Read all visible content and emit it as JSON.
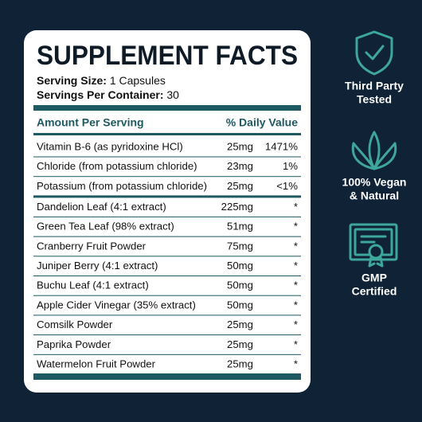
{
  "panel": {
    "title": "SUPPLEMENT FACTS",
    "serving_size": {
      "label": "Serving Size:",
      "value": "1 Capsules"
    },
    "servings_per_container": {
      "label": "Servings Per Container:",
      "value": "30"
    },
    "header": {
      "amount": "Amount Per Serving",
      "dv": "% Daily Value"
    },
    "groups": [
      {
        "rows": [
          [
            "Vitamin B-6 (as pyridoxine HCl)",
            "25mg",
            "1471%"
          ],
          [
            "Chloride (from potassium chloride)",
            "23mg",
            "1%"
          ],
          [
            "Potassium (from potassium chloride)",
            "25mg",
            "<1%"
          ]
        ]
      },
      {
        "rows": [
          [
            "Dandelion Leaf (4:1 extract)",
            "225mg",
            "*"
          ],
          [
            "Green Tea Leaf (98% extract)",
            "51mg",
            "*"
          ],
          [
            "Cranberry Fruit Powder",
            "75mg",
            "*"
          ],
          [
            "Juniper Berry (4:1 extract)",
            "50mg",
            "*"
          ],
          [
            "Buchu Leaf (4:1 extract)",
            "50mg",
            "*"
          ],
          [
            "Apple Cider Vinegar (35% extract)",
            "50mg",
            "*"
          ],
          [
            "Comsilk Powder",
            "25mg",
            "*"
          ],
          [
            "Paprika Powder",
            "25mg",
            "*"
          ],
          [
            "Watermelon Fruit Powder",
            "25mg",
            "*"
          ]
        ]
      }
    ]
  },
  "badges": [
    {
      "lines": [
        "Third Party",
        "Tested"
      ]
    },
    {
      "lines": [
        "100% Vegan",
        "& Natural"
      ]
    },
    {
      "lines": [
        "GMP",
        "Certified"
      ]
    }
  ]
}
